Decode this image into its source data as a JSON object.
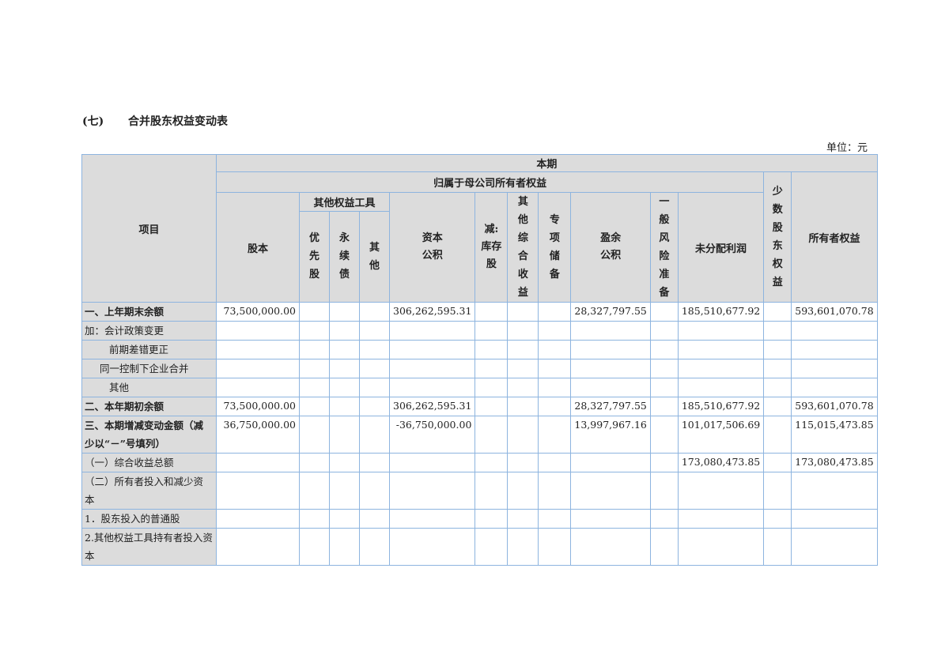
{
  "section": {
    "number": "(七)",
    "title": "合并股东权益变动表"
  },
  "unit": "单位：元",
  "header": {
    "item": "项目",
    "period": "本期",
    "parent": "归属于母公司所有者权益",
    "minority": "少数股东权益",
    "total": "所有者权益",
    "share_capital": "股本",
    "other_equity": "其他权益工具",
    "preferred": "优先股",
    "perpetual": "永续债",
    "other": "其他",
    "capital_reserve_1": "资本",
    "capital_reserve_2": "公积",
    "treasury_1": "减:",
    "treasury_2": "库存股",
    "oci": "其他综合收益",
    "special": "专项储备",
    "surplus_1": "盈余",
    "surplus_2": "公积",
    "risk": "一般风险准备",
    "retained": "未分配利润"
  },
  "rows": [
    {
      "label": "一、上年期末余额",
      "bold": true,
      "values": [
        "73,500,000.00",
        "",
        "",
        "",
        "306,262,595.31",
        "",
        "",
        "",
        "28,327,797.55",
        "",
        "185,510,677.92",
        "",
        "593,601,070.78"
      ]
    },
    {
      "label": "加：会计政策变更",
      "values": [
        "",
        "",
        "",
        "",
        "",
        "",
        "",
        "",
        "",
        "",
        "",
        "",
        ""
      ]
    },
    {
      "label": "前期差错更正",
      "indent": 1,
      "values": [
        "",
        "",
        "",
        "",
        "",
        "",
        "",
        "",
        "",
        "",
        "",
        "",
        ""
      ]
    },
    {
      "label": "同一控制下企业合并",
      "indent": 2,
      "values": [
        "",
        "",
        "",
        "",
        "",
        "",
        "",
        "",
        "",
        "",
        "",
        "",
        ""
      ]
    },
    {
      "label": "其他",
      "indent": 1,
      "values": [
        "",
        "",
        "",
        "",
        "",
        "",
        "",
        "",
        "",
        "",
        "",
        "",
        ""
      ]
    },
    {
      "label": "二、本年期初余额",
      "bold": true,
      "values": [
        "73,500,000.00",
        "",
        "",
        "",
        "306,262,595.31",
        "",
        "",
        "",
        "28,327,797.55",
        "",
        "185,510,677.92",
        "",
        "593,601,070.78"
      ]
    },
    {
      "label": "三、本期增减变动金额（减少以“－”号填列）",
      "bold": true,
      "values": [
        "36,750,000.00",
        "",
        "",
        "",
        "-36,750,000.00",
        "",
        "",
        "",
        "13,997,967.16",
        "",
        "101,017,506.69",
        "",
        "115,015,473.85"
      ]
    },
    {
      "label": "（一）综合收益总额",
      "values": [
        "",
        "",
        "",
        "",
        "",
        "",
        "",
        "",
        "",
        "",
        "173,080,473.85",
        "",
        "173,080,473.85"
      ]
    },
    {
      "label": "（二）所有者投入和减少资本",
      "values": [
        "",
        "",
        "",
        "",
        "",
        "",
        "",
        "",
        "",
        "",
        "",
        "",
        ""
      ]
    },
    {
      "label": "1．股东投入的普通股",
      "values": [
        "",
        "",
        "",
        "",
        "",
        "",
        "",
        "",
        "",
        "",
        "",
        "",
        ""
      ]
    },
    {
      "label": "2.其他权益工具持有者投入资本",
      "values": [
        "",
        "",
        "",
        "",
        "",
        "",
        "",
        "",
        "",
        "",
        "",
        "",
        ""
      ]
    }
  ]
}
